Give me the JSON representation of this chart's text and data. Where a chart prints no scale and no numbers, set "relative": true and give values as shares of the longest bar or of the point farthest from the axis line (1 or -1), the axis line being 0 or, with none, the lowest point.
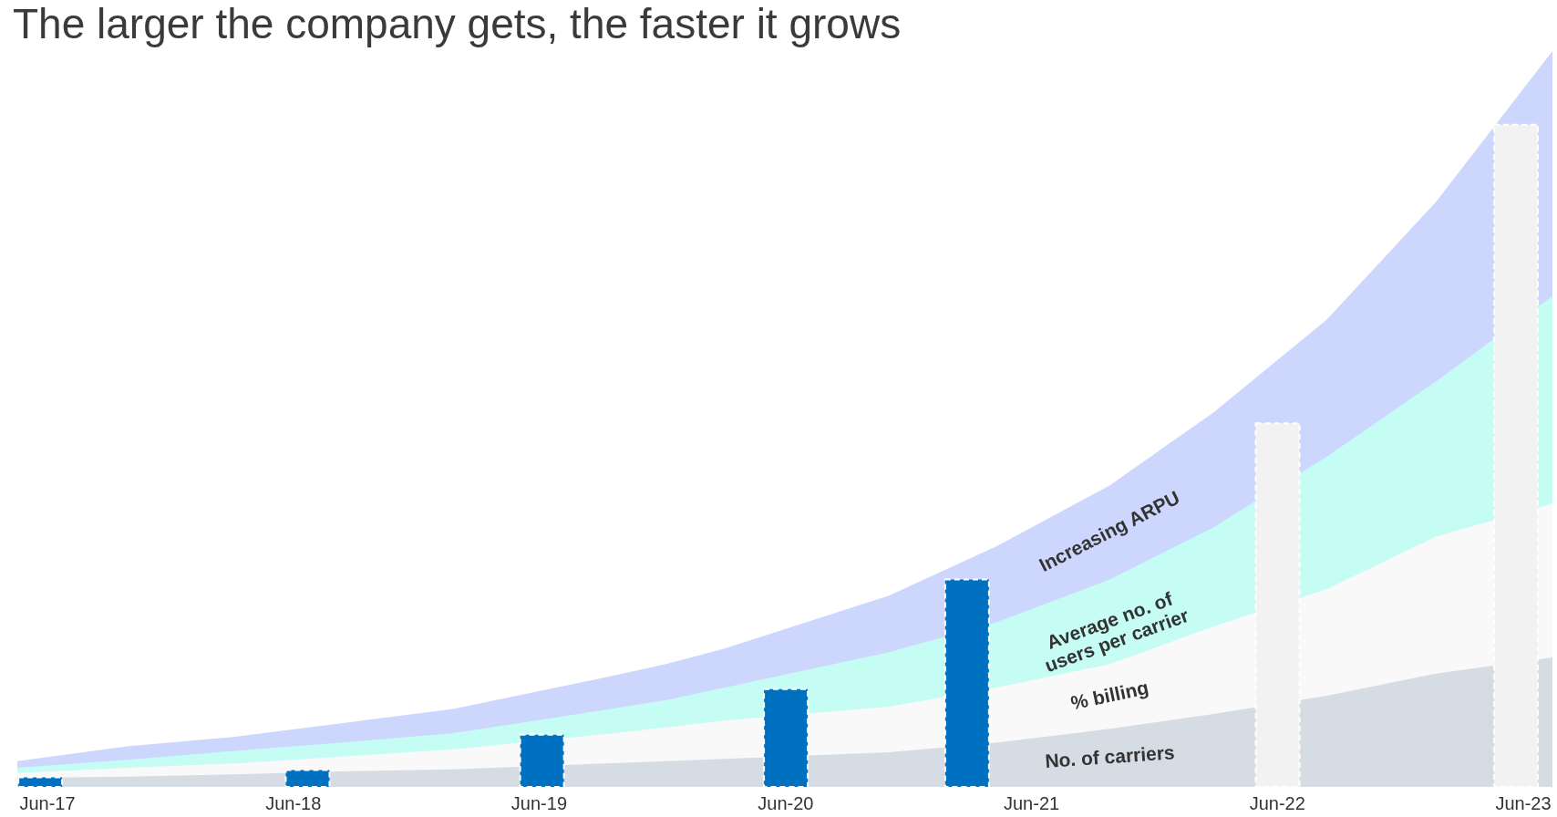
{
  "chart_data": {
    "type": "area",
    "title": "The larger the company gets, the faster it grows",
    "relative": true,
    "legend": false,
    "grid": false,
    "tick_labels": "x",
    "x": [
      "2017-05-17",
      "2017-10-27",
      "2018-04-05",
      "2018-09-07",
      "2019-02-23",
      "2019-10-08",
      "2020-01-05",
      "2020-04-01",
      "2020-12-01",
      "2021-05-10",
      "2021-10-25",
      "2022-03-28",
      "2022-09-12",
      "2023-02-21",
      "2023-08-13"
    ],
    "xlim": [
      "2017-05-17",
      "2023-08-13"
    ],
    "xticks": [
      {
        "value": "2017-06-30",
        "label": "Jun-17"
      },
      {
        "value": "2018-06-30",
        "label": "Jun-18"
      },
      {
        "value": "2019-06-30",
        "label": "Jun-19"
      },
      {
        "value": "2020-06-30",
        "label": "Jun-20"
      },
      {
        "value": "2021-06-30",
        "label": "Jun-21"
      },
      {
        "value": "2022-06-30",
        "label": "Jun-22"
      },
      {
        "value": "2023-06-30",
        "label": "Jun-23"
      }
    ],
    "series": [
      {
        "name": "Increasing ARPU",
        "color": "#cdd6fc",
        "values": [
          0.035,
          0.055,
          0.068,
          0.086,
          0.106,
          0.149,
          0.167,
          0.188,
          0.26,
          0.327,
          0.41,
          0.509,
          0.635,
          0.795,
          1
        ]
      },
      {
        "name": "Average no. of users per carrier",
        "color": "#c5fcf3",
        "values": [
          0.026,
          0.037,
          0.049,
          0.06,
          0.073,
          0.105,
          0.118,
          0.135,
          0.183,
          0.224,
          0.282,
          0.353,
          0.449,
          0.551,
          0.667
        ]
      },
      {
        "name": "% billing",
        "color": "#f9f9f9",
        "values": [
          0.019,
          0.026,
          0.032,
          0.041,
          0.051,
          0.072,
          0.081,
          0.09,
          0.109,
          0.135,
          0.167,
          0.218,
          0.269,
          0.34,
          0.385
        ]
      },
      {
        "name": "No. of carriers",
        "color": "#d6dce4",
        "values": [
          0.012,
          0.014,
          0.017,
          0.021,
          0.024,
          0.032,
          0.035,
          0.038,
          0.047,
          0.06,
          0.079,
          0.099,
          0.124,
          0.154,
          0.176
        ]
      },
      {
        "type": "bar",
        "x": [
          "2017-06-20",
          "2018-07-22",
          "2019-07-05",
          "2020-07-01",
          "2021-03-27",
          "2022-07-01",
          "2023-06-20"
        ],
        "colors": [
          "#0070c0",
          "#0070c0",
          "#0070c0",
          "#0070c0",
          "#0070c0",
          "#f2f2f2",
          "#f2f2f2"
        ],
        "values": [
          0.013,
          0.023,
          0.071,
          0.133,
          0.282,
          0.494,
          0.9
        ]
      }
    ]
  }
}
